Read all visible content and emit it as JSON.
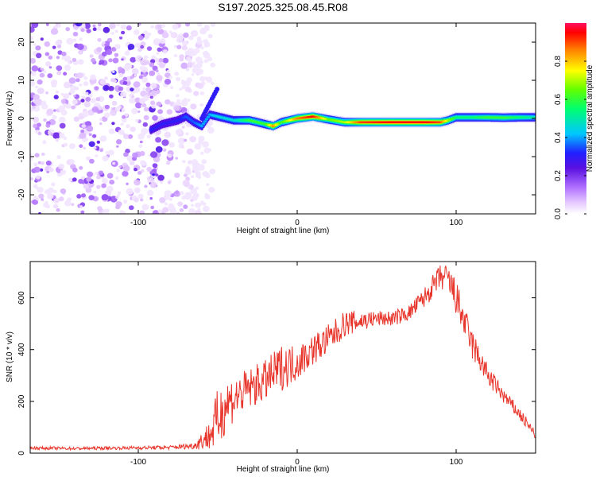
{
  "figure_title": "S197.2025.325.08.45.R08",
  "colors": {
    "snr_line": "#e8352b",
    "axis": "#000000",
    "blob": "#7a2ee0"
  },
  "chart_data": [
    {
      "type": "heatmap",
      "title": "S197.2025.325.08.45.R08",
      "xlabel": "Height of straight line (km)",
      "ylabel": "Frequency (Hz)",
      "xlim": [
        -168,
        150
      ],
      "ylim": [
        -25,
        25
      ],
      "xticks": [
        -100,
        0,
        100
      ],
      "yticks": [
        -20,
        -10,
        0,
        10,
        20
      ],
      "colorbar": {
        "label": "Normalized spectral amplitude",
        "range": [
          0,
          1
        ],
        "ticks": [
          0.0,
          0.2,
          0.4,
          0.6,
          0.8
        ]
      },
      "noise_region_x": [
        -168,
        -65
      ],
      "ridge": {
        "x": [
          -92,
          -85,
          -75,
          -70,
          -65,
          -60,
          -55,
          -50,
          -40,
          -30,
          -20,
          -15,
          -10,
          0,
          10,
          20,
          30,
          40,
          60,
          80,
          90,
          95,
          100,
          110,
          120,
          130,
          140,
          150
        ],
        "freq": [
          -3,
          -1.5,
          -0.5,
          0.5,
          -1,
          -2,
          1,
          0.5,
          -0.5,
          -0.5,
          -1.5,
          -2,
          -1,
          0,
          0.5,
          -0.3,
          -1,
          -1,
          -1,
          -1,
          -1,
          -0.5,
          0.3,
          0.3,
          0.3,
          0.2,
          0.3,
          0.3
        ],
        "amplitude": [
          0.3,
          0.3,
          0.3,
          0.35,
          0.35,
          0.4,
          0.4,
          0.45,
          0.45,
          0.6,
          0.6,
          0.85,
          0.6,
          0.85,
          0.95,
          0.65,
          0.7,
          0.9,
          0.95,
          0.95,
          0.9,
          0.7,
          0.55,
          0.55,
          0.6,
          0.6,
          0.55,
          0.5
        ],
        "branch": {
          "x": [
            -60,
            -55,
            -50
          ],
          "freq": [
            0,
            4,
            8
          ]
        }
      }
    },
    {
      "type": "line",
      "title": "",
      "xlabel": "Height of straight line (km)",
      "ylabel": "SNR (10 * v/v)",
      "xlim": [
        -168,
        150
      ],
      "ylim": [
        0,
        740
      ],
      "xticks": [
        -100,
        0,
        100
      ],
      "yticks": [
        0,
        200,
        400,
        600
      ],
      "series": [
        {
          "name": "SNR",
          "x": [
            -168,
            -140,
            -110,
            -80,
            -65,
            -55,
            -50,
            -45,
            -40,
            -30,
            -20,
            -10,
            0,
            10,
            20,
            30,
            40,
            50,
            60,
            70,
            80,
            90,
            95,
            100,
            110,
            120,
            130,
            140,
            150
          ],
          "values": [
            20,
            18,
            20,
            22,
            28,
            70,
            130,
            190,
            210,
            250,
            280,
            330,
            350,
            400,
            440,
            500,
            510,
            520,
            520,
            540,
            600,
            680,
            670,
            600,
            420,
            300,
            220,
            150,
            70
          ],
          "noise_amplitude": [
            6,
            6,
            6,
            8,
            12,
            60,
            120,
            110,
            90,
            80,
            80,
            90,
            70,
            60,
            60,
            50,
            40,
            30,
            30,
            30,
            40,
            50,
            60,
            70,
            60,
            40,
            30,
            25,
            20
          ]
        }
      ]
    }
  ]
}
